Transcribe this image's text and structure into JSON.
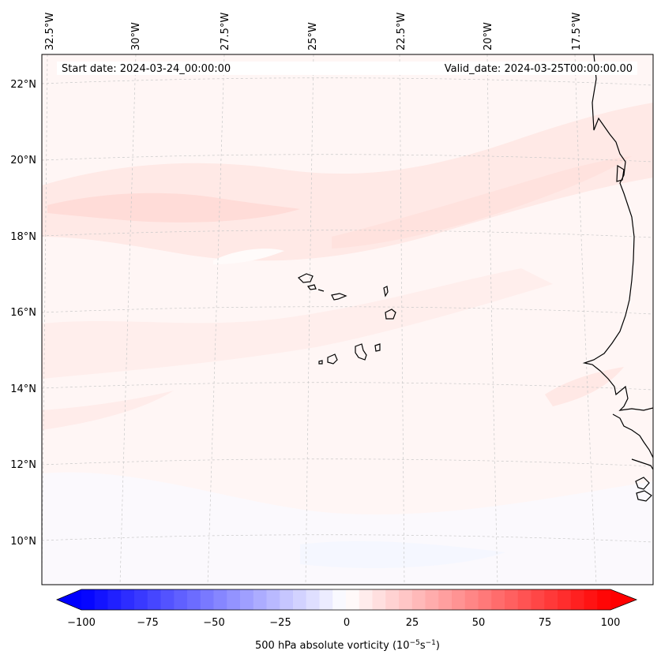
{
  "header": {
    "start_date": "Start date: 2024-03-24_00:00:00",
    "valid_date": "Valid_date: 2024-03-25T00:00:00.00"
  },
  "axes": {
    "lon_labels": [
      "32.5°W",
      "30°W",
      "27.5°W",
      "25°W",
      "22.5°W",
      "20°W",
      "17.5°W"
    ],
    "lat_labels": [
      "22°N",
      "20°N",
      "18°N",
      "16°N",
      "14°N",
      "12°N",
      "10°N"
    ]
  },
  "colorbar": {
    "ticks": [
      "−100",
      "−75",
      "−50",
      "−25",
      "0",
      "25",
      "50",
      "75",
      "100"
    ],
    "label_main": "500 hPa absolute vorticity (10",
    "label_exp1": "−5",
    "label_mid": "s",
    "label_exp2": "−1",
    "label_end": ")",
    "min": -100,
    "max": 100,
    "levels": 40,
    "low_color": "#0000ff",
    "mid_color": "#ffffff",
    "high_color": "#ff0000"
  },
  "colors": {
    "background_field": "#fff6f5",
    "vorticity_band": "#ffe6e3",
    "vorticity_core": "#ffd9d5",
    "negative_patch": "#f5f7ff",
    "coastline": "#000000",
    "gridline": "#c8c8c8"
  }
}
